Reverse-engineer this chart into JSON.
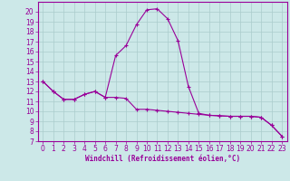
{
  "xlabel": "Windchill (Refroidissement éolien,°C)",
  "x": [
    0,
    1,
    2,
    3,
    4,
    5,
    6,
    7,
    8,
    9,
    10,
    11,
    12,
    13,
    14,
    15,
    16,
    17,
    18,
    19,
    20,
    21,
    22,
    23
  ],
  "line1": [
    13,
    12,
    11.2,
    11.2,
    11.7,
    12.0,
    11.4,
    11.4,
    11.3,
    10.2,
    10.2,
    10.1,
    10.0,
    9.9,
    9.8,
    9.7,
    9.6,
    9.55,
    9.5,
    9.5,
    9.5,
    9.4,
    8.6,
    7.5
  ],
  "line2": [
    13,
    12,
    11.2,
    11.2,
    11.7,
    12.0,
    11.4,
    15.6,
    16.6,
    18.7,
    20.2,
    20.3,
    19.3,
    17.1,
    12.5,
    9.8,
    9.6,
    9.55,
    9.5,
    9.5,
    9.5,
    9.4,
    8.6,
    7.5
  ],
  "line_color": "#990099",
  "bg_color": "#cce8e8",
  "grid_color": "#aacccc",
  "ylim": [
    7,
    21
  ],
  "xlim": [
    -0.5,
    23.5
  ],
  "yticks": [
    7,
    8,
    9,
    10,
    11,
    12,
    13,
    14,
    15,
    16,
    17,
    18,
    19,
    20
  ],
  "xticks": [
    0,
    1,
    2,
    3,
    4,
    5,
    6,
    7,
    8,
    9,
    10,
    11,
    12,
    13,
    14,
    15,
    16,
    17,
    18,
    19,
    20,
    21,
    22,
    23
  ],
  "marker": "+",
  "markersize": 3.5,
  "linewidth": 0.8,
  "tick_fontsize": 5.5,
  "label_fontsize": 5.5
}
